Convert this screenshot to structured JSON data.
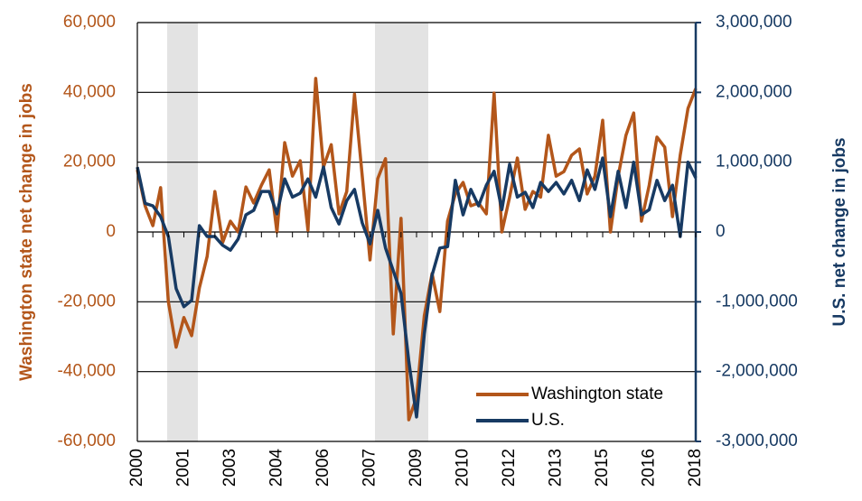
{
  "chart_data": {
    "type": "line",
    "y_axis_label": "Washington state net change in jobs",
    "y2_axis_label": "U.S.  net change in jobs",
    "categories": [
      "2000",
      null,
      null,
      null,
      null,
      null,
      "2001",
      null,
      null,
      null,
      null,
      null,
      "2003",
      null,
      null,
      null,
      null,
      null,
      "2004",
      null,
      null,
      null,
      null,
      null,
      "2006",
      null,
      null,
      null,
      null,
      null,
      "2007",
      null,
      null,
      null,
      null,
      null,
      "2009",
      null,
      null,
      null,
      null,
      null,
      "2010",
      null,
      null,
      null,
      null,
      null,
      "2012",
      null,
      null,
      null,
      null,
      null,
      "2013",
      null,
      null,
      null,
      null,
      null,
      "2015",
      null,
      null,
      null,
      null,
      null,
      "2016",
      null,
      null,
      null,
      null,
      null,
      "2018"
    ],
    "series": [
      {
        "name": "Washington state",
        "color": "#b3561a",
        "axis": "y",
        "values": [
          17800,
          7500,
          1800,
          12700,
          -20000,
          -33000,
          -24500,
          -29700,
          -16000,
          -7000,
          11600,
          -3000,
          3100,
          0,
          12900,
          8300,
          13400,
          17800,
          0,
          25600,
          16000,
          20400,
          500,
          44000,
          18600,
          25000,
          5200,
          11600,
          39500,
          16000,
          -8000,
          15300,
          21000,
          -29200,
          3900,
          -53800,
          -47300,
          -24000,
          -11900,
          -22800,
          3100,
          10900,
          14200,
          7500,
          8300,
          5200,
          39800,
          0,
          10000,
          21200,
          6500,
          11600,
          10000,
          27700,
          16000,
          17300,
          22000,
          23800,
          10900,
          16000,
          32000,
          0,
          16000,
          27700,
          34100,
          3100,
          13400,
          27200,
          24300,
          4400,
          22000,
          35400,
          41100
        ]
      },
      {
        "name": "U.S.",
        "color": "#173a63",
        "axis": "y2",
        "values": [
          930000,
          410000,
          375000,
          220000,
          -65000,
          -810000,
          -1070000,
          -980000,
          90000,
          -65000,
          -65000,
          -190000,
          -260000,
          -100000,
          245000,
          310000,
          580000,
          580000,
          260000,
          760000,
          500000,
          555000,
          760000,
          500000,
          930000,
          350000,
          115000,
          450000,
          610000,
          130000,
          -170000,
          310000,
          -230000,
          -555000,
          -880000,
          -1850000,
          -2650000,
          -1460000,
          -620000,
          -230000,
          -210000,
          740000,
          245000,
          610000,
          375000,
          670000,
          870000,
          320000,
          970000,
          500000,
          570000,
          350000,
          710000,
          580000,
          710000,
          545000,
          740000,
          450000,
          890000,
          610000,
          1060000,
          220000,
          870000,
          350000,
          1000000,
          245000,
          320000,
          740000,
          450000,
          670000,
          -65000,
          1000000,
          775000
        ]
      }
    ],
    "ylim": [
      -60000,
      60000
    ],
    "yticks": [
      {
        "value": -60000,
        "label": "-60,000"
      },
      {
        "value": -40000,
        "label": "-40,000"
      },
      {
        "value": -20000,
        "label": "-20,000"
      },
      0,
      {
        "value": 20000,
        "label": "20,000"
      },
      {
        "value": 40000,
        "label": "40,000"
      },
      {
        "value": 60000,
        "label": "60,000"
      }
    ],
    "y2lim": [
      -3000000,
      3000000
    ],
    "y2ticks": [
      {
        "value": -3000000,
        "label": "-3,000,000"
      },
      {
        "value": -2000000,
        "label": "-2,000,000"
      },
      {
        "value": -1000000,
        "label": "-1,000,000"
      },
      0,
      {
        "value": 1000000,
        "label": "1,000,000"
      },
      {
        "value": 2000000,
        "label": "2,000,000"
      },
      {
        "value": 3000000,
        "label": "3,000,000"
      }
    ],
    "grid": true,
    "legend": "lower right"
  }
}
